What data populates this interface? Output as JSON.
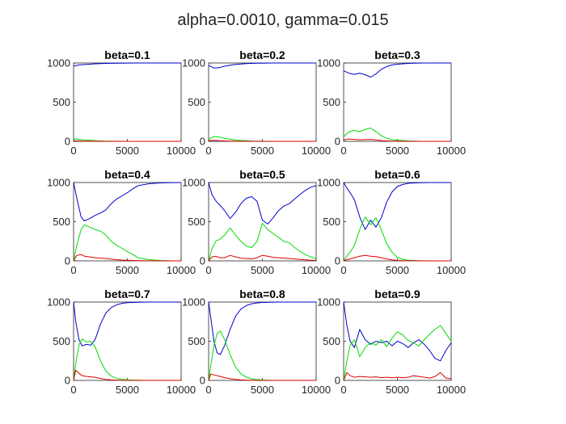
{
  "figure": {
    "title": "alpha=0.0010, gamma=0.015"
  },
  "colors": {
    "s1": "#0000cc",
    "s2": "#00dd00",
    "s3": "#dd0000"
  },
  "chart_data": [
    {
      "type": "line",
      "title": "beta=0.1",
      "xlim": [
        0,
        10000
      ],
      "ylim": [
        0,
        1000
      ],
      "xticks": [
        "0",
        "5000",
        "10000"
      ],
      "yticks": [
        "0",
        "500",
        "1000"
      ],
      "x": [
        0,
        500,
        1000,
        1500,
        2000,
        2500,
        3000,
        3500,
        4000,
        4500,
        5000,
        6000,
        7000,
        8000,
        9000,
        10000
      ],
      "series": [
        {
          "color": "s1",
          "values": [
            960,
            975,
            980,
            985,
            990,
            993,
            995,
            996,
            997,
            998,
            999,
            1000,
            1000,
            1000,
            1000,
            1000
          ]
        },
        {
          "color": "s2",
          "values": [
            35,
            25,
            18,
            12,
            8,
            5,
            3,
            2,
            1,
            1,
            0,
            0,
            0,
            0,
            0,
            0
          ]
        },
        {
          "color": "s3",
          "values": [
            8,
            5,
            3,
            2,
            1,
            1,
            0,
            0,
            0,
            0,
            0,
            0,
            0,
            0,
            0,
            0
          ]
        }
      ]
    },
    {
      "type": "line",
      "title": "beta=0.2",
      "xlim": [
        0,
        10000
      ],
      "ylim": [
        0,
        1000
      ],
      "xticks": [
        "0",
        "5000",
        "10000"
      ],
      "yticks": [
        "0",
        "500",
        "1000"
      ],
      "x": [
        0,
        500,
        1000,
        1500,
        2000,
        2500,
        3000,
        3500,
        4000,
        4500,
        5000,
        6000,
        7000,
        8000,
        9000,
        10000
      ],
      "series": [
        {
          "color": "s1",
          "values": [
            970,
            935,
            940,
            960,
            972,
            982,
            988,
            992,
            995,
            997,
            998,
            1000,
            1000,
            1000,
            1000,
            1000
          ]
        },
        {
          "color": "s2",
          "values": [
            25,
            62,
            55,
            38,
            27,
            17,
            10,
            7,
            4,
            3,
            2,
            0,
            0,
            0,
            0,
            0
          ]
        },
        {
          "color": "s3",
          "values": [
            8,
            12,
            8,
            5,
            3,
            2,
            1,
            1,
            0,
            0,
            0,
            0,
            0,
            0,
            0,
            0
          ]
        }
      ]
    },
    {
      "type": "line",
      "title": "beta=0.3",
      "xlim": [
        0,
        10000
      ],
      "ylim": [
        0,
        1000
      ],
      "xticks": [
        "0",
        "5000",
        "10000"
      ],
      "yticks": [
        "0",
        "500",
        "1000"
      ],
      "x": [
        0,
        500,
        1000,
        1500,
        2000,
        2500,
        3000,
        3500,
        4000,
        4500,
        5000,
        6000,
        7000,
        8000,
        9000,
        10000
      ],
      "series": [
        {
          "color": "s1",
          "values": [
            900,
            870,
            855,
            870,
            850,
            820,
            860,
            920,
            955,
            975,
            985,
            995,
            999,
            1000,
            1000,
            1000
          ]
        },
        {
          "color": "s2",
          "values": [
            60,
            120,
            140,
            125,
            150,
            170,
            125,
            70,
            40,
            22,
            12,
            5,
            1,
            0,
            0,
            0
          ]
        },
        {
          "color": "s3",
          "values": [
            20,
            30,
            25,
            20,
            22,
            25,
            18,
            10,
            5,
            3,
            2,
            0,
            0,
            0,
            0,
            0
          ]
        }
      ]
    },
    {
      "type": "line",
      "title": "beta=0.4",
      "xlim": [
        0,
        10000
      ],
      "ylim": [
        0,
        1000
      ],
      "xticks": [
        "0",
        "5000",
        "10000"
      ],
      "yticks": [
        "0",
        "500",
        "1000"
      ],
      "x": [
        0,
        300,
        700,
        1000,
        1500,
        2000,
        2500,
        3000,
        3500,
        4000,
        4500,
        5000,
        5500,
        6000,
        7000,
        8000,
        9000,
        10000
      ],
      "series": [
        {
          "color": "s1",
          "values": [
            1000,
            800,
            560,
            510,
            540,
            580,
            610,
            650,
            730,
            790,
            830,
            870,
            920,
            960,
            985,
            995,
            999,
            1000
          ]
        },
        {
          "color": "s2",
          "values": [
            0,
            200,
            400,
            460,
            430,
            400,
            380,
            330,
            250,
            200,
            160,
            120,
            80,
            40,
            15,
            5,
            1,
            0
          ]
        },
        {
          "color": "s3",
          "values": [
            0,
            70,
            80,
            60,
            50,
            40,
            35,
            30,
            22,
            15,
            10,
            8,
            5,
            3,
            1,
            0,
            0,
            0
          ]
        }
      ]
    },
    {
      "type": "line",
      "title": "beta=0.5",
      "xlim": [
        0,
        10000
      ],
      "ylim": [
        0,
        1000
      ],
      "xticks": [
        "0",
        "5000",
        "10000"
      ],
      "yticks": [
        "0",
        "500",
        "1000"
      ],
      "x": [
        0,
        300,
        700,
        1000,
        1500,
        2000,
        2500,
        3000,
        3500,
        4000,
        4500,
        5000,
        5500,
        6000,
        6500,
        7000,
        7500,
        8000,
        8500,
        9000,
        9500,
        10000
      ],
      "series": [
        {
          "color": "s1",
          "values": [
            1000,
            850,
            760,
            720,
            640,
            540,
            620,
            730,
            800,
            820,
            760,
            520,
            470,
            550,
            640,
            700,
            730,
            790,
            850,
            900,
            940,
            960
          ]
        },
        {
          "color": "s2",
          "values": [
            0,
            150,
            260,
            270,
            330,
            420,
            330,
            250,
            190,
            170,
            250,
            480,
            400,
            350,
            300,
            250,
            230,
            170,
            120,
            80,
            50,
            30
          ]
        },
        {
          "color": "s3",
          "values": [
            0,
            50,
            60,
            40,
            40,
            70,
            50,
            35,
            30,
            25,
            40,
            70,
            60,
            45,
            40,
            35,
            30,
            25,
            18,
            12,
            8,
            5
          ]
        }
      ]
    },
    {
      "type": "line",
      "title": "beta=0.6",
      "xlim": [
        0,
        10000
      ],
      "ylim": [
        0,
        1000
      ],
      "xticks": [
        "0",
        "5000",
        "10000"
      ],
      "yticks": [
        "0",
        "500",
        "1000"
      ],
      "x": [
        0,
        300,
        700,
        1000,
        1500,
        2000,
        2500,
        3000,
        3500,
        4000,
        4500,
        5000,
        5500,
        6000,
        7000,
        8000,
        9000,
        10000
      ],
      "series": [
        {
          "color": "s1",
          "values": [
            1000,
            930,
            850,
            780,
            560,
            400,
            520,
            430,
            550,
            750,
            880,
            950,
            975,
            990,
            998,
            1000,
            1000,
            1000
          ]
        },
        {
          "color": "s2",
          "values": [
            0,
            60,
            130,
            200,
            400,
            560,
            460,
            550,
            400,
            220,
            110,
            45,
            20,
            8,
            2,
            0,
            0,
            0
          ]
        },
        {
          "color": "s3",
          "values": [
            0,
            15,
            30,
            40,
            60,
            70,
            60,
            55,
            40,
            25,
            12,
            5,
            2,
            1,
            0,
            0,
            0,
            0
          ]
        }
      ]
    },
    {
      "type": "line",
      "title": "beta=0.7",
      "xlim": [
        0,
        10000
      ],
      "ylim": [
        0,
        1000
      ],
      "xticks": [
        "0",
        "5000",
        "10000"
      ],
      "yticks": [
        "0",
        "500",
        "1000"
      ],
      "x": [
        0,
        200,
        500,
        800,
        1200,
        1600,
        2000,
        2500,
        3000,
        3500,
        4000,
        4500,
        5000,
        6000,
        7000,
        8000,
        9000,
        10000
      ],
      "series": [
        {
          "color": "s1",
          "values": [
            1000,
            750,
            520,
            440,
            460,
            450,
            520,
            720,
            860,
            930,
            965,
            983,
            992,
            998,
            1000,
            1000,
            1000,
            1000
          ]
        },
        {
          "color": "s2",
          "values": [
            0,
            220,
            450,
            530,
            490,
            500,
            430,
            250,
            120,
            55,
            25,
            12,
            6,
            2,
            0,
            0,
            0,
            0
          ]
        },
        {
          "color": "s3",
          "values": [
            0,
            130,
            90,
            60,
            50,
            45,
            40,
            25,
            12,
            6,
            3,
            1,
            0,
            0,
            0,
            0,
            0,
            0
          ]
        }
      ]
    },
    {
      "type": "line",
      "title": "beta=0.8",
      "xlim": [
        0,
        10000
      ],
      "ylim": [
        0,
        1000
      ],
      "xticks": [
        "0",
        "5000",
        "10000"
      ],
      "yticks": [
        "0",
        "500",
        "1000"
      ],
      "x": [
        0,
        200,
        500,
        800,
        1100,
        1500,
        2000,
        2500,
        3000,
        3500,
        4000,
        4500,
        5000,
        6000,
        7000,
        8000,
        9000,
        10000
      ],
      "series": [
        {
          "color": "s1",
          "values": [
            1000,
            800,
            500,
            350,
            330,
            450,
            650,
            820,
            910,
            955,
            978,
            989,
            995,
            999,
            1000,
            1000,
            1000,
            1000
          ]
        },
        {
          "color": "s2",
          "values": [
            0,
            190,
            440,
            600,
            630,
            520,
            330,
            170,
            85,
            42,
            20,
            10,
            5,
            1,
            0,
            0,
            0,
            0
          ]
        },
        {
          "color": "s3",
          "values": [
            0,
            80,
            70,
            60,
            50,
            35,
            22,
            12,
            6,
            3,
            2,
            1,
            0,
            0,
            0,
            0,
            0,
            0
          ]
        }
      ]
    },
    {
      "type": "line",
      "title": "beta=0.9",
      "xlim": [
        0,
        10000
      ],
      "ylim": [
        0,
        1000
      ],
      "xticks": [
        "0",
        "5000",
        "10000"
      ],
      "yticks": [
        "0",
        "500",
        "1000"
      ],
      "x": [
        0,
        300,
        600,
        1000,
        1500,
        2000,
        2500,
        3000,
        3500,
        4000,
        4500,
        5000,
        5500,
        6000,
        6500,
        7000,
        7500,
        8000,
        8500,
        9000,
        9500,
        10000
      ],
      "series": [
        {
          "color": "s1",
          "values": [
            1000,
            700,
            500,
            420,
            650,
            520,
            460,
            500,
            480,
            500,
            440,
            500,
            470,
            420,
            480,
            520,
            460,
            380,
            280,
            250,
            380,
            480
          ]
        },
        {
          "color": "s2",
          "values": [
            0,
            250,
            450,
            520,
            300,
            420,
            480,
            450,
            520,
            430,
            540,
            620,
            580,
            510,
            480,
            440,
            520,
            590,
            650,
            700,
            600,
            500
          ]
        },
        {
          "color": "s3",
          "values": [
            0,
            100,
            60,
            40,
            50,
            45,
            40,
            45,
            35,
            40,
            35,
            40,
            35,
            40,
            60,
            50,
            40,
            30,
            50,
            100,
            30,
            20
          ]
        }
      ]
    }
  ]
}
